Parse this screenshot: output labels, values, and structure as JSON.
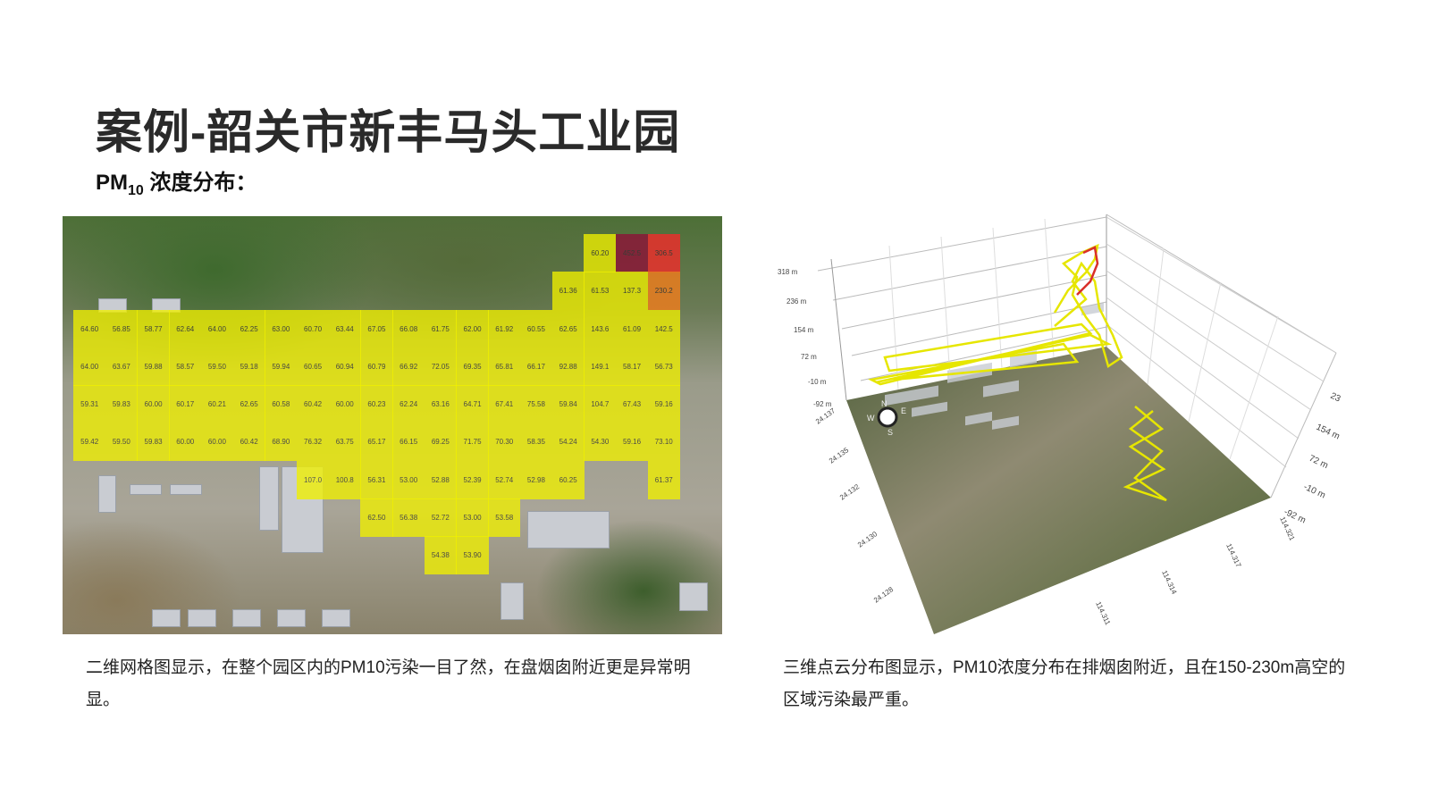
{
  "title": "案例-韶关市新丰马头工业园",
  "subtitle": {
    "main": "PM",
    "sub": "10",
    "rest": " 浓度分布："
  },
  "grid_map": {
    "colors": {
      "normal": "#f0f000",
      "high_orange": "#ea7d1f",
      "high_red": "#e8302c",
      "highest_maroon": "#8a1838"
    },
    "rows": [
      [
        null,
        null,
        null,
        null,
        null,
        null,
        null,
        null,
        null,
        null,
        null,
        null,
        null,
        null,
        null,
        null,
        "60.20",
        "452.5",
        "306.5"
      ],
      [
        null,
        null,
        null,
        null,
        null,
        null,
        null,
        null,
        null,
        null,
        null,
        null,
        null,
        null,
        null,
        "61.36",
        "61.53",
        "137.3",
        "230.2"
      ],
      [
        "64.60",
        "56.85",
        "58.77",
        "62.64",
        "64.00",
        "62.25",
        "63.00",
        "60.70",
        "63.44",
        "67.05",
        "66.08",
        "61.75",
        "62.00",
        "61.92",
        "60.55",
        "62.65",
        "143.6",
        "61.09",
        "142.5"
      ],
      [
        "64.00",
        "63.67",
        "59.88",
        "58.57",
        "59.50",
        "59.18",
        "59.94",
        "60.65",
        "60.94",
        "60.79",
        "66.92",
        "72.05",
        "69.35",
        "65.81",
        "66.17",
        "92.88",
        "149.1",
        "58.17",
        "56.73"
      ],
      [
        "59.31",
        "59.83",
        "60.00",
        "60.17",
        "60.21",
        "62.65",
        "60.58",
        "60.42",
        "60.00",
        "60.23",
        "62.24",
        "63.16",
        "64.71",
        "67.41",
        "75.58",
        "59.84",
        "104.7",
        "67.43",
        "59.16"
      ],
      [
        "59.42",
        "59.50",
        "59.83",
        "60.00",
        "60.00",
        "60.42",
        "68.90",
        "76.32",
        "63.75",
        "65.17",
        "66.15",
        "69.25",
        "71.75",
        "70.30",
        "58.35",
        "54.24",
        "54.30",
        "59.16",
        "73.10"
      ],
      [
        null,
        null,
        null,
        null,
        null,
        null,
        null,
        "107.0",
        "100.8",
        "56.31",
        "53.00",
        "52.88",
        "52.39",
        "52.74",
        "52.98",
        "60.25",
        null,
        null,
        "61.37"
      ],
      [
        null,
        null,
        null,
        null,
        null,
        null,
        null,
        null,
        null,
        "62.50",
        "56.38",
        "52.72",
        "53.00",
        "53.58",
        null,
        null,
        null,
        null,
        null
      ],
      [
        null,
        null,
        null,
        null,
        null,
        null,
        null,
        null,
        null,
        null,
        null,
        "54.38",
        "53.90",
        null,
        null,
        null,
        null,
        null,
        null
      ]
    ]
  },
  "plot3d": {
    "z_ticks_left": [
      "318 m",
      "236 m",
      "154 m",
      "72 m",
      "-10 m",
      "-92 m"
    ],
    "z_ticks_right": [
      "23",
      "154 m",
      "72 m",
      "-10 m",
      "-92 m"
    ],
    "lat_ticks": [
      "24.137",
      "24.135",
      "24.132",
      "24.130",
      "24.128"
    ],
    "lon_ticks": [
      "114.321",
      "114.317",
      "114.314",
      "114.311"
    ],
    "compass": {
      "n": "N",
      "s": "S",
      "w": "W",
      "e": "E"
    },
    "track_color": "#e6e600",
    "hot_color": "#d9302a"
  },
  "captions": {
    "left": "二维网格图显示，在整个园区内的PM10污染一目了然，在盘烟囱附近更是异常明显。",
    "right": "三维点云分布图显示，PM10浓度分布在排烟囱附近，且在150-230m高空的区域污染最严重。"
  }
}
